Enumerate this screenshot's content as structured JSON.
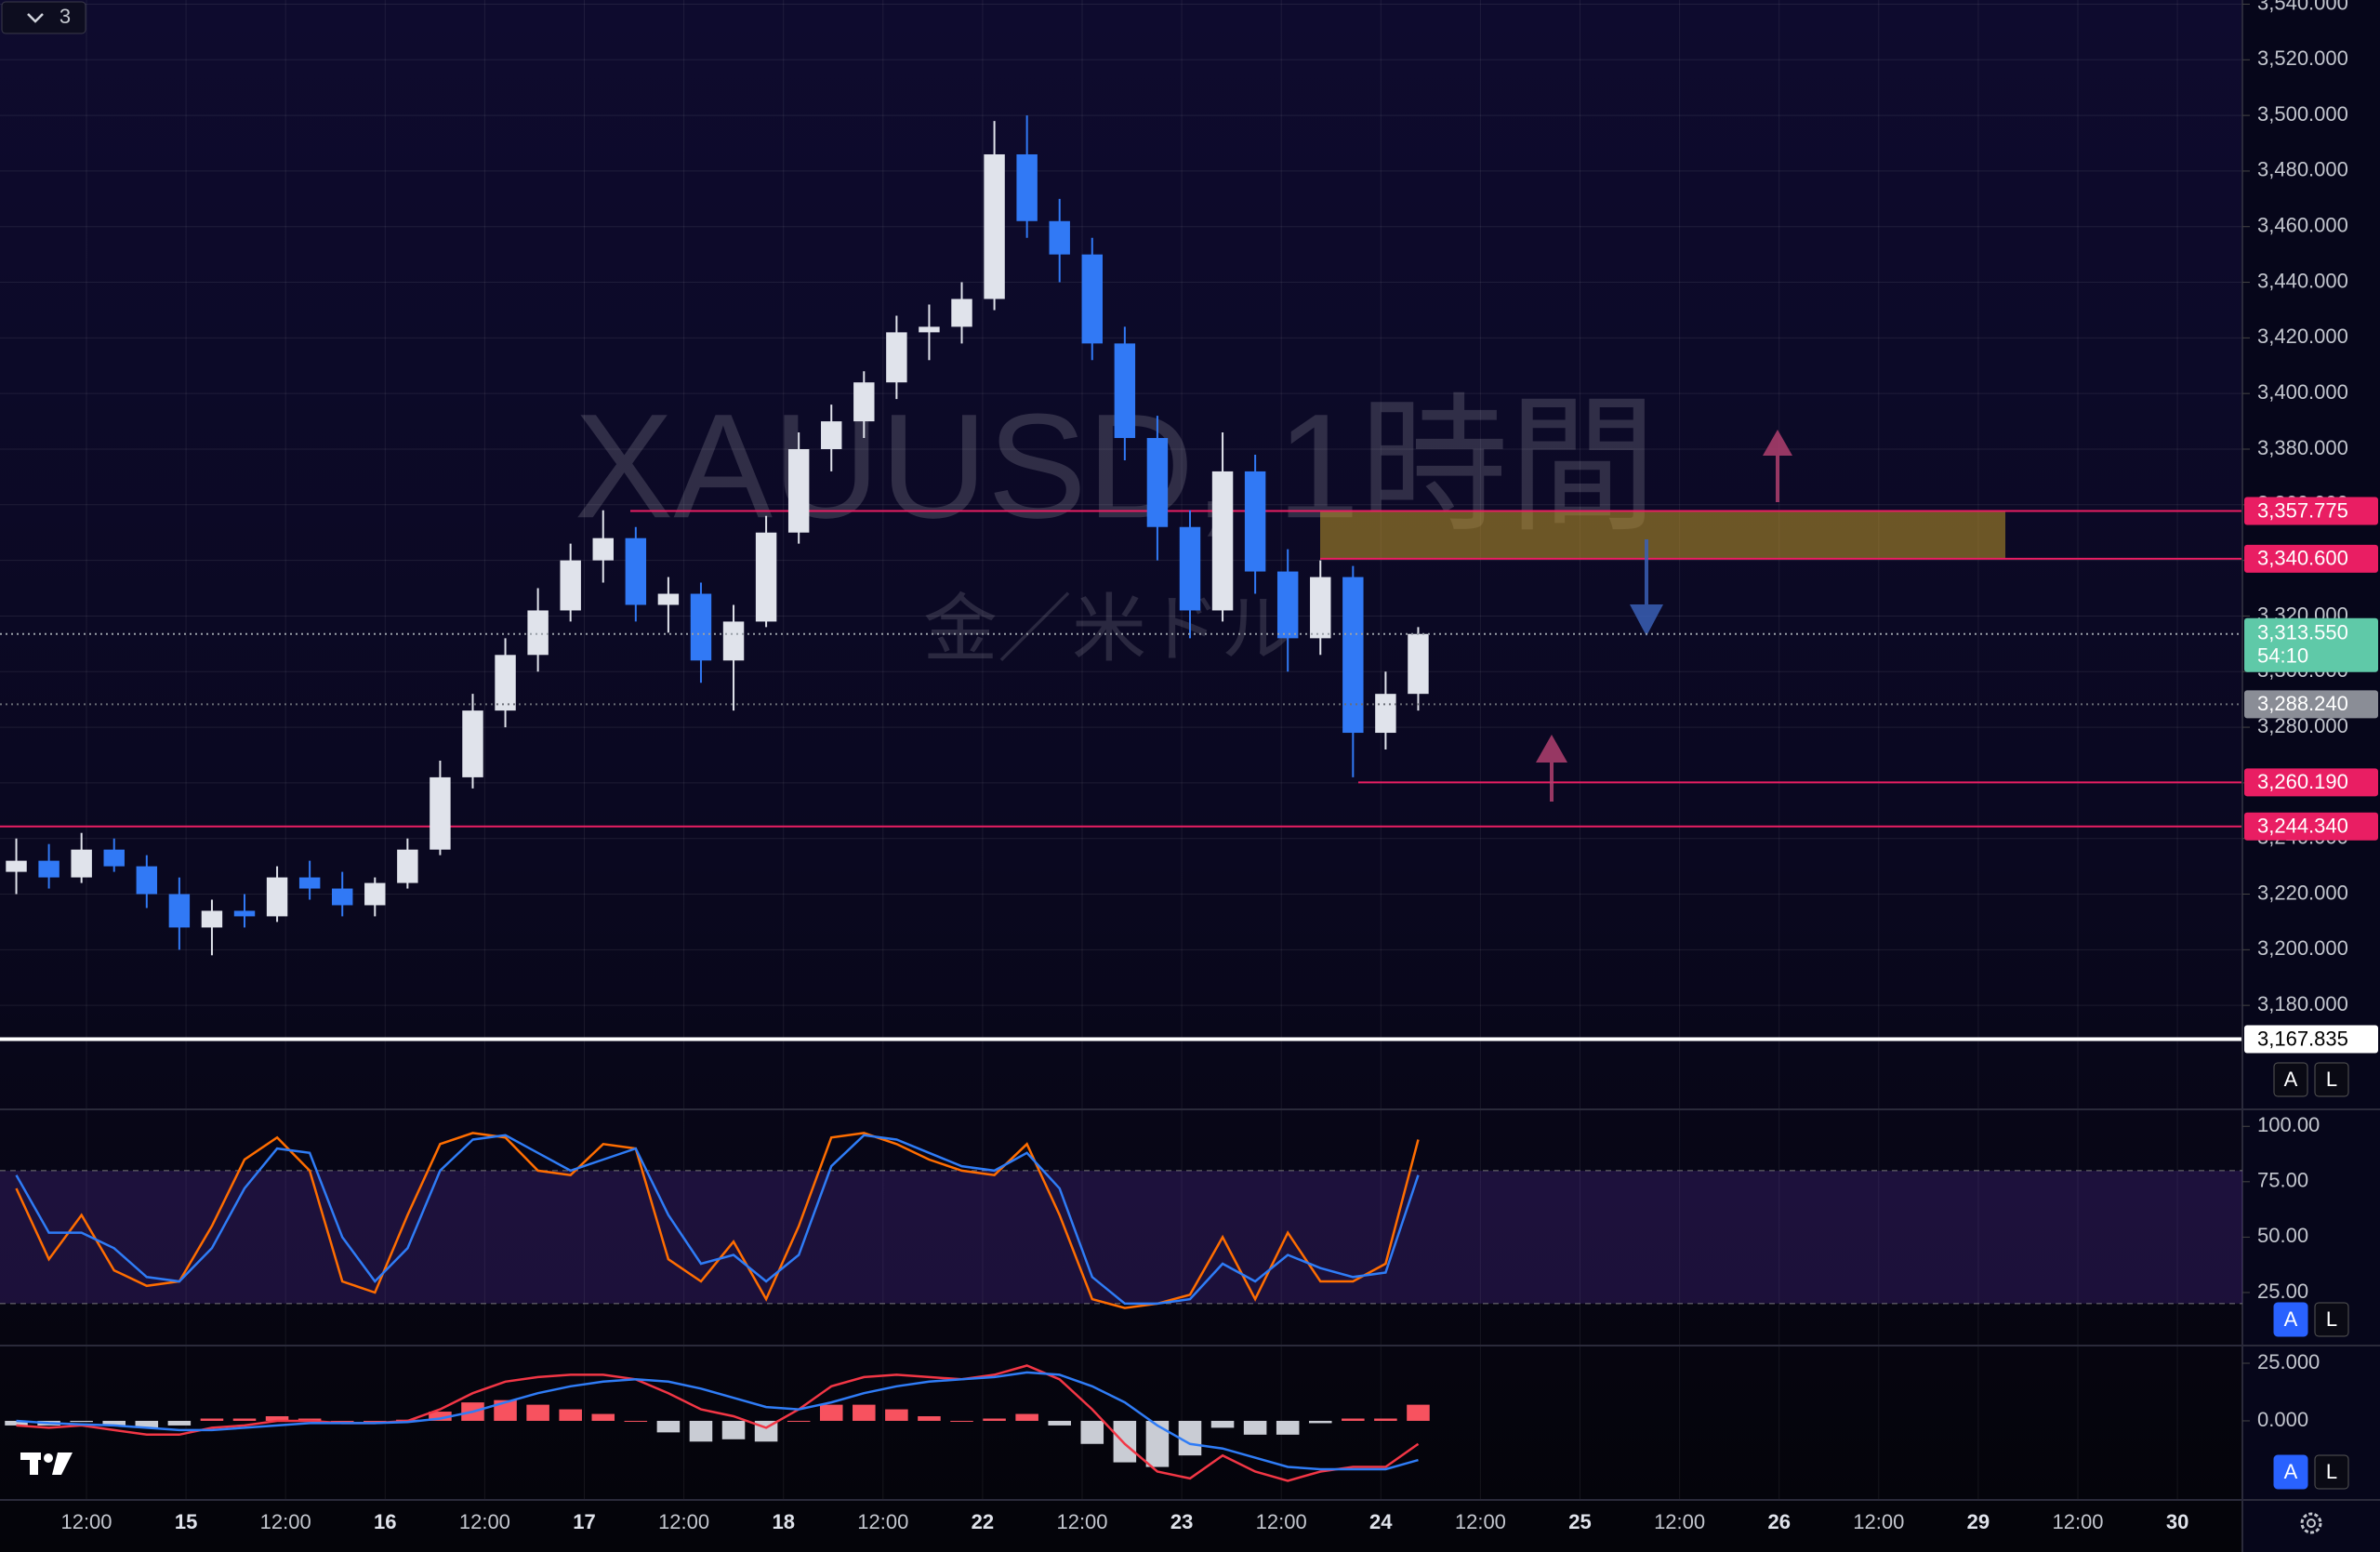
{
  "ui": {
    "legend_toggle": "3",
    "axis_buttons": [
      "A",
      "L"
    ]
  },
  "chart_data": [
    {
      "type": "candlestick",
      "title": "XAUUSD, 1時間",
      "subtitle": "金／米ドル",
      "up_color": "#e0e3eb",
      "down_color": "#3179f5",
      "categories": [
        "12:00",
        "15",
        "12:00",
        "16",
        "12:00",
        "17",
        "12:00",
        "18",
        "12:00",
        "22",
        "12:00",
        "23",
        "12:00",
        "24",
        "12:00",
        "25",
        "12:00",
        "26",
        "12:00",
        "29",
        "12:00",
        "30"
      ],
      "ylim": [
        3143.6,
        3541.5
      ],
      "yticks": [
        {
          "value": 3180,
          "label": "3,180.000"
        },
        {
          "value": 3200,
          "label": "3,200.000"
        },
        {
          "value": 3220,
          "label": "3,220.000"
        },
        {
          "value": 3240,
          "label": "3,240.000"
        },
        {
          "value": 3260,
          "label": "3,260.000"
        },
        {
          "value": 3280,
          "label": "3,280.000"
        },
        {
          "value": 3300,
          "label": "3,300.000"
        },
        {
          "value": 3320,
          "label": "3,320.000"
        },
        {
          "value": 3340,
          "label": "3,340.000"
        },
        {
          "value": 3360,
          "label": "3,360.000"
        },
        {
          "value": 3380,
          "label": "3,380.000"
        },
        {
          "value": 3400,
          "label": "3,400.000"
        },
        {
          "value": 3420,
          "label": "3,420.000"
        },
        {
          "value": 3440,
          "label": "3,440.000"
        },
        {
          "value": 3460,
          "label": "3,460.000"
        },
        {
          "value": 3480,
          "label": "3,480.000"
        },
        {
          "value": 3500,
          "label": "3,500.000"
        },
        {
          "value": 3520,
          "label": "3,520.000"
        },
        {
          "value": 3540,
          "label": "3,540.000"
        }
      ],
      "grid": true,
      "ohlc": [
        [
          3228,
          3240,
          3220,
          3232
        ],
        [
          3232,
          3238,
          3222,
          3226
        ],
        [
          3226,
          3242,
          3224,
          3236
        ],
        [
          3236,
          3240,
          3228,
          3230
        ],
        [
          3230,
          3234,
          3215,
          3220
        ],
        [
          3220,
          3226,
          3200,
          3208
        ],
        [
          3208,
          3218,
          3198,
          3214
        ],
        [
          3214,
          3220,
          3208,
          3212
        ],
        [
          3212,
          3230,
          3210,
          3226
        ],
        [
          3226,
          3232,
          3218,
          3222
        ],
        [
          3222,
          3228,
          3212,
          3216
        ],
        [
          3216,
          3226,
          3212,
          3224
        ],
        [
          3224,
          3240,
          3222,
          3236
        ],
        [
          3236,
          3268,
          3234,
          3262
        ],
        [
          3262,
          3292,
          3258,
          3286
        ],
        [
          3286,
          3312,
          3280,
          3306
        ],
        [
          3306,
          3330,
          3300,
          3322
        ],
        [
          3322,
          3346,
          3318,
          3340
        ],
        [
          3340,
          3358,
          3332,
          3348
        ],
        [
          3348,
          3352,
          3318,
          3324
        ],
        [
          3324,
          3334,
          3314,
          3328
        ],
        [
          3328,
          3332,
          3296,
          3304
        ],
        [
          3304,
          3324,
          3286,
          3318
        ],
        [
          3318,
          3356,
          3316,
          3350
        ],
        [
          3350,
          3386,
          3346,
          3380
        ],
        [
          3380,
          3396,
          3372,
          3390
        ],
        [
          3390,
          3408,
          3384,
          3404
        ],
        [
          3404,
          3428,
          3398,
          3422
        ],
        [
          3422,
          3432,
          3412,
          3424
        ],
        [
          3424,
          3440,
          3418,
          3434
        ],
        [
          3434,
          3498,
          3430,
          3486
        ],
        [
          3486,
          3500,
          3456,
          3462
        ],
        [
          3462,
          3470,
          3440,
          3450
        ],
        [
          3450,
          3456,
          3412,
          3418
        ],
        [
          3418,
          3424,
          3376,
          3384
        ],
        [
          3384,
          3392,
          3340,
          3352
        ],
        [
          3352,
          3358,
          3312,
          3322
        ],
        [
          3322,
          3386,
          3318,
          3372
        ],
        [
          3372,
          3378,
          3328,
          3336
        ],
        [
          3336,
          3344,
          3300,
          3312
        ],
        [
          3312,
          3340,
          3306,
          3334
        ],
        [
          3334,
          3338,
          3262,
          3278
        ],
        [
          3278,
          3300,
          3272,
          3292
        ],
        [
          3292,
          3316,
          3286,
          3313.55
        ]
      ],
      "levels": [
        {
          "value": 3357.775,
          "label": "3,357.775",
          "color": "#e91e63"
        },
        {
          "value": 3340.6,
          "label": "3,340.600",
          "color": "#e91e63"
        },
        {
          "value": 3260.19,
          "label": "3,260.190",
          "color": "#e91e63"
        },
        {
          "value": 3244.34,
          "label": "3,244.340",
          "color": "#e91e63"
        },
        {
          "value": 3167.835,
          "label": "3,167.835",
          "color": "#ffffff"
        }
      ],
      "last_price": {
        "value": 3313.55,
        "label": "3,313.550",
        "countdown": "54:10",
        "color": "#5fc9a8"
      },
      "prev_close": {
        "value": 3288.24,
        "label": "3,288.240",
        "color": "#8a8d96"
      }
    },
    {
      "type": "line",
      "ylim": [
        1.9,
        106.4
      ],
      "yticks": [
        {
          "value": 100,
          "label": "100.00"
        },
        {
          "value": 75,
          "label": "75.00"
        },
        {
          "value": 50,
          "label": "50.00"
        },
        {
          "value": 25,
          "label": "25.00"
        }
      ],
      "band": [
        20,
        80
      ],
      "series": [
        {
          "color": "#ff6d00",
          "values": [
            72,
            40,
            60,
            35,
            28,
            30,
            55,
            85,
            95,
            80,
            30,
            25,
            60,
            92,
            97,
            95,
            80,
            78,
            92,
            90,
            40,
            30,
            48,
            22,
            55,
            95,
            97,
            92,
            85,
            80,
            78,
            92,
            60,
            22,
            18,
            20,
            24,
            50,
            22,
            52,
            30,
            30,
            38,
            94
          ]
        },
        {
          "color": "#2f7cf6",
          "values": [
            78,
            52,
            52,
            45,
            32,
            30,
            45,
            72,
            90,
            88,
            50,
            30,
            45,
            80,
            94,
            96,
            88,
            80,
            85,
            90,
            60,
            38,
            42,
            30,
            42,
            82,
            96,
            94,
            88,
            82,
            80,
            88,
            72,
            32,
            20,
            20,
            22,
            38,
            30,
            42,
            36,
            32,
            34,
            78
          ]
        }
      ]
    },
    {
      "type": "macd",
      "ylim": [
        -34.3,
        31.45
      ],
      "yticks": [
        {
          "value": 25,
          "label": "25.000"
        },
        {
          "value": 0,
          "label": "0.000"
        }
      ],
      "up_color": "#f7525f",
      "down_color": "#c9ccd4",
      "histogram": [
        -2,
        -2,
        -0.5,
        -2,
        -3,
        -2,
        1,
        1,
        2,
        1,
        0,
        0,
        0.5,
        4,
        8,
        9,
        7,
        5,
        3,
        0,
        -5,
        -9,
        -8,
        -9,
        0,
        7,
        7,
        5,
        2,
        0,
        1,
        3,
        -2,
        -10,
        -18,
        -20,
        -15,
        -3,
        -6,
        -6,
        -1,
        1,
        1,
        7
      ],
      "series": [
        {
          "color": "#f23645",
          "values": [
            -2,
            -3,
            -2,
            -4,
            -6,
            -6,
            -3,
            -2,
            0,
            0,
            -1,
            -1,
            0,
            5,
            12,
            17,
            19,
            20,
            20,
            18,
            12,
            5,
            2,
            -3,
            5,
            15,
            19,
            20,
            19,
            18,
            20,
            24,
            18,
            5,
            -10,
            -22,
            -25,
            -15,
            -22,
            -26,
            -22,
            -20,
            -20,
            -10
          ]
        },
        {
          "color": "#2f7cf6",
          "values": [
            0,
            -1,
            -1.5,
            -2,
            -3,
            -4,
            -4,
            -3,
            -2,
            -1,
            -1,
            -1,
            -0.5,
            1,
            4,
            8,
            12,
            15,
            17,
            18,
            17,
            14,
            10,
            6,
            5,
            8,
            12,
            15,
            17,
            18,
            19,
            21,
            20,
            15,
            8,
            -2,
            -10,
            -12,
            -16,
            -20,
            -21,
            -21,
            -21,
            -17
          ]
        }
      ]
    }
  ]
}
